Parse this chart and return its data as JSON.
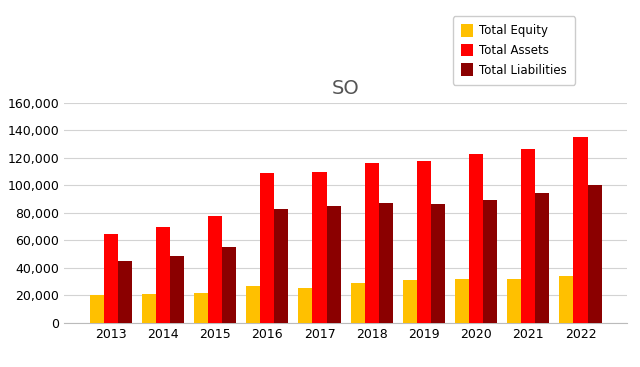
{
  "title": "SO",
  "years": [
    2013,
    2014,
    2015,
    2016,
    2017,
    2018,
    2019,
    2020,
    2021,
    2022
  ],
  "total_equity": [
    20000,
    21000,
    22000,
    27000,
    25500,
    29000,
    31500,
    32000,
    32000,
    34000
  ],
  "total_assets": [
    64500,
    70000,
    78000,
    109000,
    110000,
    116500,
    118000,
    122500,
    126500,
    135000
  ],
  "total_liabilities": [
    45000,
    48500,
    55500,
    82500,
    85000,
    87000,
    86500,
    89000,
    94500,
    100000
  ],
  "color_equity": "#FFC000",
  "color_assets": "#FF0000",
  "color_liabilities": "#8B0000",
  "ylim": [
    0,
    160000
  ],
  "yticks": [
    0,
    20000,
    40000,
    60000,
    80000,
    100000,
    120000,
    140000,
    160000
  ],
  "background_color": "#FFFFFF",
  "grid_color": "#D3D3D3",
  "legend_labels": [
    "Total Equity",
    "Total Assets",
    "Total Liabilities"
  ],
  "title_fontsize": 14,
  "tick_fontsize": 9
}
